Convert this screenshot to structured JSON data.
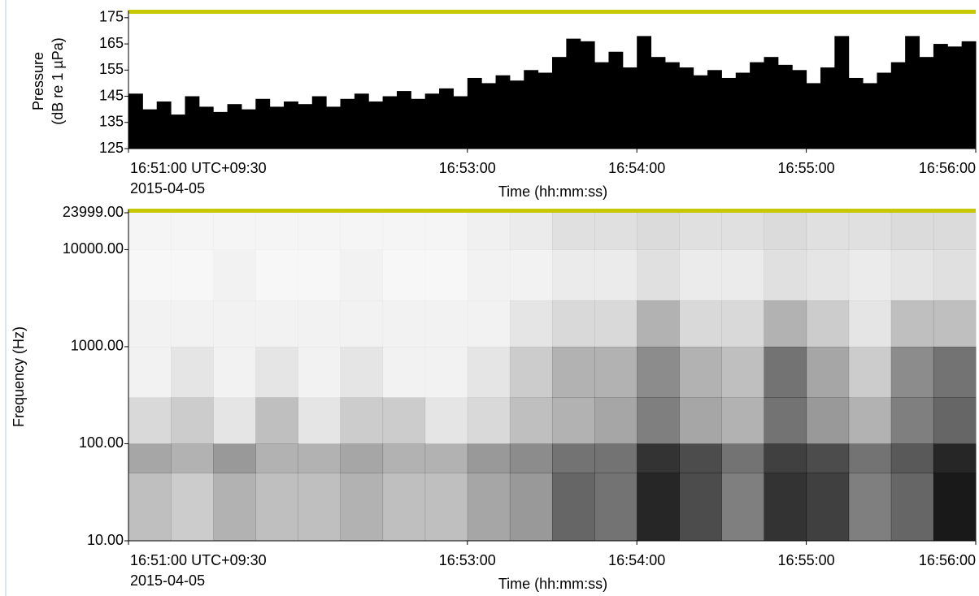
{
  "chart_data": [
    {
      "type": "bar",
      "ylabel": [
        "Pressure",
        "(dB re 1 µPa)"
      ],
      "xlabel": "Time (hh:mm:ss)",
      "timezone": "UTC+09:30",
      "date": "2015-04-05",
      "color": "#000000",
      "x": [
        "16:51:00",
        "16:51:05",
        "16:51:10",
        "16:51:15",
        "16:51:20",
        "16:51:25",
        "16:51:30",
        "16:51:35",
        "16:51:40",
        "16:51:45",
        "16:51:50",
        "16:51:55",
        "16:52:00",
        "16:52:05",
        "16:52:10",
        "16:52:15",
        "16:52:20",
        "16:52:25",
        "16:52:30",
        "16:52:35",
        "16:52:40",
        "16:52:45",
        "16:52:50",
        "16:52:55",
        "16:53:00",
        "16:53:05",
        "16:53:10",
        "16:53:15",
        "16:53:20",
        "16:53:25",
        "16:53:30",
        "16:53:35",
        "16:53:40",
        "16:53:45",
        "16:53:50",
        "16:53:55",
        "16:54:00",
        "16:54:05",
        "16:54:10",
        "16:54:15",
        "16:54:20",
        "16:54:25",
        "16:54:30",
        "16:54:35",
        "16:54:40",
        "16:54:45",
        "16:54:50",
        "16:54:55",
        "16:55:00",
        "16:55:05",
        "16:55:10",
        "16:55:15",
        "16:55:20",
        "16:55:25",
        "16:55:30",
        "16:55:35",
        "16:55:40",
        "16:55:45",
        "16:55:50",
        "16:55:55"
      ],
      "values": [
        146,
        140,
        143,
        138,
        145,
        141,
        139,
        142,
        140,
        144,
        141,
        143,
        142,
        145,
        141,
        144,
        146,
        143,
        145,
        147,
        144,
        146,
        148,
        145,
        152,
        150,
        153,
        151,
        155,
        154,
        160,
        167,
        166,
        158,
        162,
        156,
        168,
        160,
        158,
        156,
        153,
        155,
        152,
        154,
        158,
        160,
        157,
        155,
        150,
        156,
        168,
        152,
        150,
        154,
        158,
        168,
        160,
        165,
        164,
        166
      ],
      "xlim": [
        "16:51:00",
        "16:56:00"
      ],
      "xticks": [
        "16:51:00",
        "16:53:00",
        "16:54:00",
        "16:55:00",
        "16:56:00"
      ],
      "ylim": [
        125,
        176.5
      ],
      "yticks": [
        125,
        135,
        145,
        155,
        165,
        175
      ]
    },
    {
      "type": "heatmap",
      "ylabel": "Frequency (Hz)",
      "xlabel": "Time (hh:mm:ss)",
      "timezone": "UTC+09:30",
      "date": "2015-04-05",
      "color": "#000000",
      "yscale": "log",
      "x_bins": [
        "16:51:00",
        "16:51:15",
        "16:51:30",
        "16:51:45",
        "16:52:00",
        "16:52:15",
        "16:52:30",
        "16:52:45",
        "16:53:00",
        "16:53:15",
        "16:53:30",
        "16:53:45",
        "16:54:00",
        "16:54:15",
        "16:54:30",
        "16:54:45",
        "16:55:00",
        "16:55:15",
        "16:55:30",
        "16:55:45",
        "16:56:00"
      ],
      "y_bins": [
        10,
        50,
        100,
        300,
        1000,
        3000,
        10000,
        23999
      ],
      "values": [
        [
          0.25,
          0.2,
          0.3,
          0.25,
          0.25,
          0.3,
          0.25,
          0.25,
          0.35,
          0.4,
          0.6,
          0.55,
          0.85,
          0.7,
          0.5,
          0.8,
          0.75,
          0.5,
          0.6,
          0.9
        ],
        [
          0.35,
          0.3,
          0.4,
          0.3,
          0.3,
          0.35,
          0.3,
          0.3,
          0.4,
          0.45,
          0.55,
          0.55,
          0.8,
          0.7,
          0.55,
          0.75,
          0.7,
          0.55,
          0.65,
          0.85
        ],
        [
          0.15,
          0.2,
          0.1,
          0.25,
          0.1,
          0.2,
          0.2,
          0.1,
          0.15,
          0.25,
          0.3,
          0.35,
          0.5,
          0.35,
          0.3,
          0.55,
          0.4,
          0.3,
          0.5,
          0.6
        ],
        [
          0.05,
          0.1,
          0.05,
          0.1,
          0.05,
          0.1,
          0.05,
          0.05,
          0.1,
          0.2,
          0.3,
          0.3,
          0.45,
          0.3,
          0.25,
          0.55,
          0.35,
          0.2,
          0.45,
          0.55
        ],
        [
          0.05,
          0.05,
          0.05,
          0.05,
          0.05,
          0.05,
          0.05,
          0.05,
          0.05,
          0.1,
          0.15,
          0.15,
          0.3,
          0.15,
          0.15,
          0.3,
          0.2,
          0.1,
          0.25,
          0.25
        ],
        [
          0.03,
          0.03,
          0.05,
          0.03,
          0.03,
          0.05,
          0.03,
          0.03,
          0.05,
          0.05,
          0.08,
          0.08,
          0.12,
          0.08,
          0.08,
          0.12,
          0.1,
          0.08,
          0.1,
          0.12
        ],
        [
          0.04,
          0.04,
          0.04,
          0.04,
          0.04,
          0.04,
          0.04,
          0.04,
          0.06,
          0.08,
          0.12,
          0.12,
          0.14,
          0.12,
          0.12,
          0.14,
          0.12,
          0.12,
          0.14,
          0.14
        ]
      ],
      "xlim": [
        "16:51:00",
        "16:56:00"
      ],
      "xticks": [
        "16:51:00",
        "16:53:00",
        "16:54:00",
        "16:55:00",
        "16:56:00"
      ],
      "ylim": [
        10,
        23999
      ],
      "yticks": [
        {
          "value": 10,
          "label": "10.00"
        },
        {
          "value": 100,
          "label": "100.00"
        },
        {
          "value": 1000,
          "label": "1000.00"
        },
        {
          "value": 10000,
          "label": "10000.00"
        },
        {
          "value": 23999,
          "label": "23999.00"
        }
      ]
    }
  ]
}
